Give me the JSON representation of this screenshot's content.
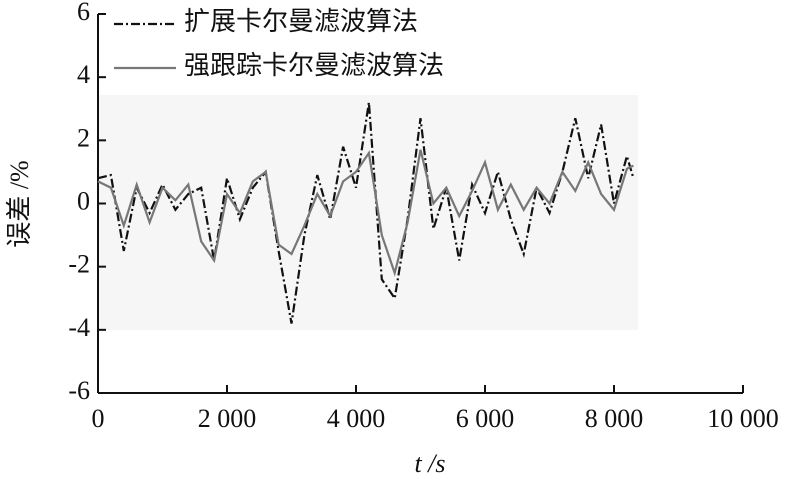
{
  "chart_data": {
    "type": "line",
    "x_label": "t /s",
    "y_label": "误差 /%",
    "x": [
      0,
      200,
      400,
      600,
      800,
      1000,
      1200,
      1400,
      1600,
      1800,
      2000,
      2200,
      2400,
      2600,
      2800,
      3000,
      3200,
      3400,
      3600,
      3800,
      4000,
      4200,
      4400,
      4600,
      4800,
      5000,
      5200,
      5400,
      5600,
      5800,
      6000,
      6200,
      6400,
      6600,
      6800,
      7000,
      7200,
      7400,
      7600,
      7800,
      8000,
      8200,
      8300
    ],
    "series": [
      {
        "name": "扩展卡尔曼滤波算法",
        "color": "#111111",
        "dash": "dashdot",
        "values": [
          0.8,
          0.9,
          -1.5,
          0.5,
          -0.3,
          0.6,
          -0.2,
          0.3,
          0.5,
          -1.8,
          0.8,
          -0.5,
          0.5,
          1.0,
          -1.5,
          -3.8,
          -1.0,
          0.9,
          -0.5,
          1.8,
          0.5,
          3.2,
          -2.4,
          -3.0,
          -0.5,
          2.7,
          -0.8,
          0.5,
          -1.8,
          0.6,
          -0.3,
          1.0,
          -0.5,
          -1.6,
          0.5,
          -0.3,
          1.0,
          2.7,
          0.8,
          2.5,
          0.0,
          1.5,
          0.8
        ]
      },
      {
        "name": "强跟踪卡尔曼滤波算法",
        "color": "#777777",
        "dash": "solid",
        "values": [
          0.7,
          0.5,
          -0.7,
          0.6,
          -0.6,
          0.5,
          0.1,
          0.6,
          -1.2,
          -1.8,
          0.3,
          -0.3,
          0.7,
          1.0,
          -1.3,
          -1.6,
          -0.7,
          0.3,
          -0.4,
          0.7,
          1.0,
          1.6,
          -1.0,
          -2.2,
          -0.6,
          1.7,
          0.0,
          0.5,
          -0.4,
          0.4,
          1.3,
          -0.2,
          0.6,
          -0.2,
          0.5,
          0.0,
          1.0,
          0.4,
          1.3,
          0.3,
          -0.2,
          1.1,
          1.2
        ]
      }
    ],
    "xlim": [
      0,
      10000
    ],
    "xticks": [
      0,
      {
        "value": 2000,
        "label": "2 000"
      },
      {
        "value": 4000,
        "label": "4 000"
      },
      {
        "value": 6000,
        "label": "6 000"
      },
      {
        "value": 8000,
        "label": "8 000"
      },
      {
        "value": 10000,
        "label": "10 000"
      }
    ],
    "ylim": [
      -6,
      6
    ],
    "yticks": [
      -6,
      -4,
      -2,
      0,
      2,
      4,
      6
    ],
    "legend": "top-left",
    "grid": false
  }
}
